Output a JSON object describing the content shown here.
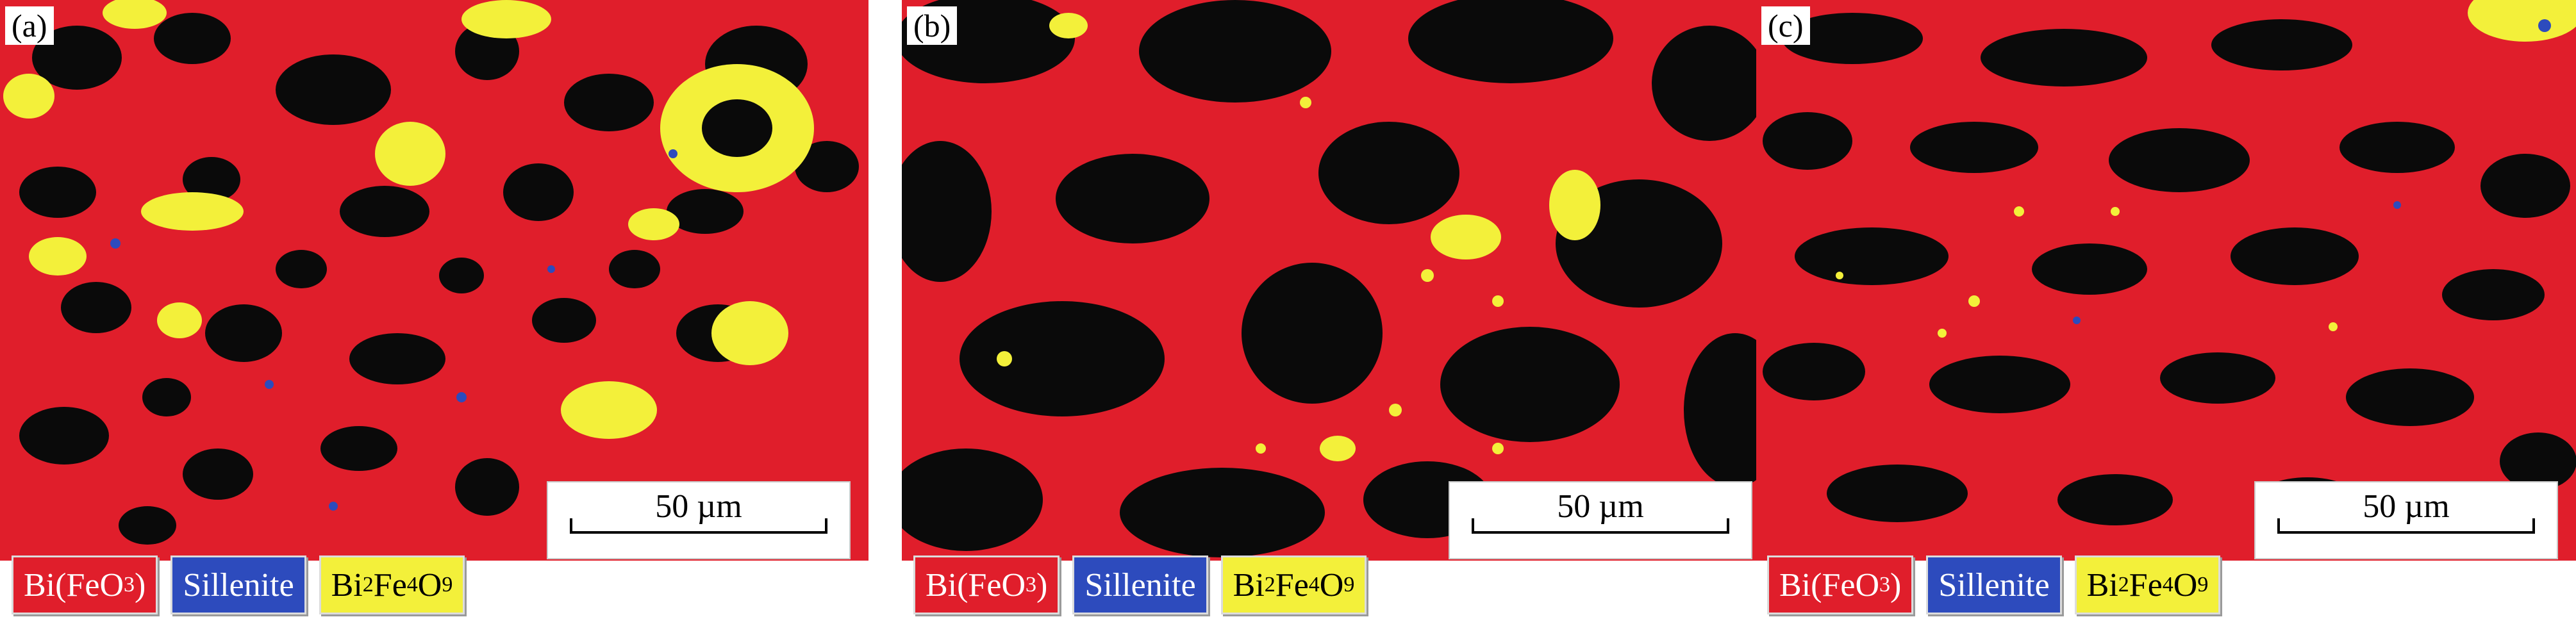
{
  "panels": [
    {
      "tag": "(a)",
      "scale_label": "50 µm"
    },
    {
      "tag": "(b)",
      "scale_label": "50 µm"
    },
    {
      "tag": "(c)",
      "scale_label": "50 µm"
    }
  ],
  "legend": {
    "phase1": {
      "base": "Bi(FeO",
      "sub": "3",
      "tail": ")",
      "color": "#e01e2b"
    },
    "phase2": {
      "label": "Sillenite",
      "color": "#2d4bbd"
    },
    "phase3": {
      "p1": "Bi",
      "s1": "2",
      "p2": "Fe",
      "s2": "4",
      "p3": "O",
      "s3": "9",
      "color": "#f3f03a"
    }
  },
  "colors": {
    "matrix": "#e01e2b",
    "pores": "#0a0a0a",
    "secondary": "#f3f03a",
    "sillenite": "#2d4bbd"
  }
}
